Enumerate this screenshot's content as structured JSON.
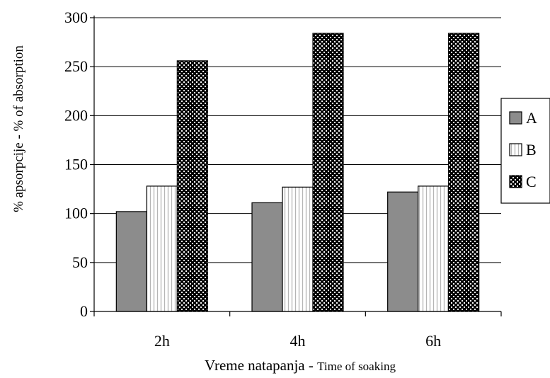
{
  "chart_data": {
    "type": "bar",
    "categories": [
      "2h",
      "4h",
      "6h"
    ],
    "series": [
      {
        "name": "A",
        "values": [
          102,
          111,
          122
        ],
        "pattern": "solid-gray",
        "color": "#8c8c8c"
      },
      {
        "name": "B",
        "values": [
          128,
          127,
          128
        ],
        "pattern": "vertical-stripes",
        "color": "#ffffff"
      },
      {
        "name": "C",
        "values": [
          256,
          284,
          284
        ],
        "pattern": "white-dots-on-black",
        "color": "#000000"
      }
    ],
    "title": "",
    "xlabel_main": "Vreme natapanja - ",
    "xlabel_sub": "Time of soaking",
    "ylabel": "% apsorpcije - % of absorption",
    "ylim": [
      0,
      300
    ],
    "yticks": [
      0,
      50,
      100,
      150,
      200,
      250,
      300
    ],
    "grid": true,
    "legend_position": "right"
  }
}
